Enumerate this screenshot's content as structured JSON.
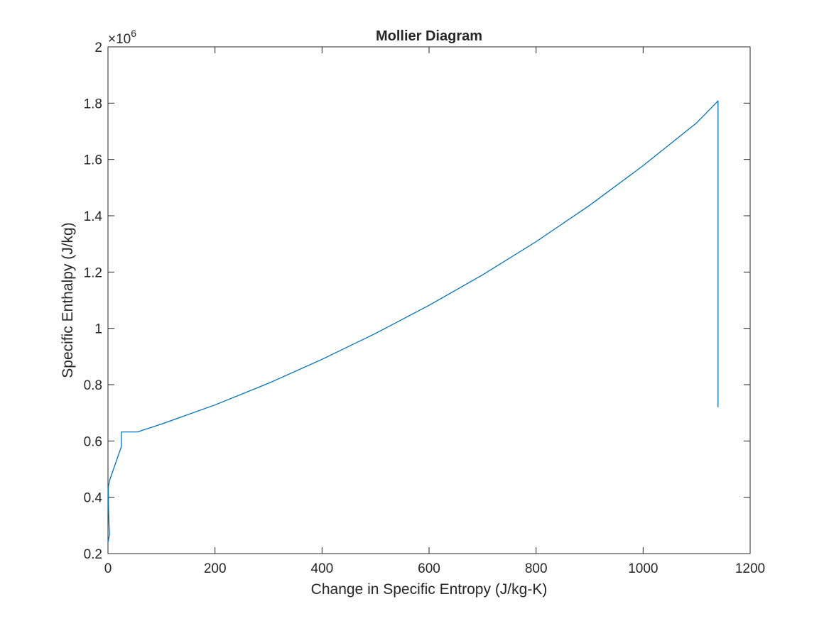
{
  "chart_data": {
    "type": "line",
    "title": "Mollier Diagram",
    "xlabel": "Change in Specific Entropy (J/kg-K)",
    "ylabel": "Specific Enthalpy (J/kg)",
    "xlim": [
      0,
      1200
    ],
    "ylim": [
      200000,
      2000000
    ],
    "x_ticks": [
      0,
      200,
      400,
      600,
      800,
      1000,
      1200
    ],
    "x_tick_labels": [
      "0",
      "200",
      "400",
      "600",
      "800",
      "1000",
      "1200"
    ],
    "y_ticks": [
      200000,
      400000,
      600000,
      800000,
      1000000,
      1200000,
      1400000,
      1600000,
      1800000,
      2000000
    ],
    "y_tick_labels": [
      "0.2",
      "0.4",
      "0.6",
      "0.8",
      "1",
      "1.2",
      "1.4",
      "1.6",
      "1.8",
      "2"
    ],
    "y_exponent_base": "×10",
    "y_exponent_power": "6",
    "grid": false,
    "box": true,
    "series": [
      {
        "color": "#0072bd",
        "x": [
          0,
          1,
          2,
          3,
          2,
          1,
          0.5,
          1,
          2,
          3,
          25,
          25,
          55,
          100,
          200,
          300,
          400,
          500,
          600,
          700,
          800,
          900,
          1000,
          1100,
          1140,
          1140
        ],
        "y": [
          240000,
          250000,
          260000,
          270000,
          300000,
          360000,
          430000,
          440000,
          450000,
          460000,
          580000,
          632000,
          632000,
          660000,
          728000,
          805000,
          890000,
          982000,
          1082000,
          1190000,
          1308000,
          1437000,
          1578000,
          1730000,
          1808000,
          720000
        ]
      }
    ]
  }
}
